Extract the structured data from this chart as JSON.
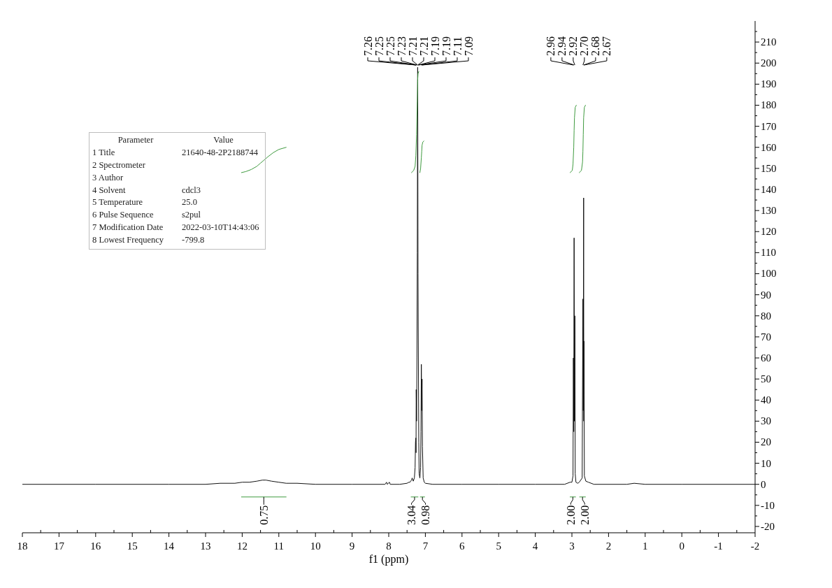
{
  "chart_data": {
    "type": "line",
    "xlabel": "f1 (ppm)",
    "xlim": [
      18,
      -2
    ],
    "xticks": [
      18,
      {
        "value": 17.5,
        "label": null
      },
      17,
      {
        "value": 16.5,
        "label": null
      },
      16,
      {
        "value": 15.5,
        "label": null
      },
      15,
      {
        "value": 14.5,
        "label": null
      },
      14,
      {
        "value": 13.5,
        "label": null
      },
      13,
      {
        "value": 12.5,
        "label": null
      },
      12,
      {
        "value": 11.5,
        "label": null
      },
      11,
      {
        "value": 10.5,
        "label": null
      },
      10,
      {
        "value": 9.5,
        "label": null
      },
      9,
      {
        "value": 8.5,
        "label": null
      },
      8,
      {
        "value": 7.5,
        "label": null
      },
      7,
      {
        "value": 6.5,
        "label": null
      },
      6,
      {
        "value": 5.5,
        "label": null
      },
      5,
      {
        "value": 4.5,
        "label": null
      },
      4,
      {
        "value": 3.5,
        "label": null
      },
      3,
      {
        "value": 2.5,
        "label": null
      },
      2,
      {
        "value": 1.5,
        "label": null
      },
      1,
      {
        "value": 0.5,
        "label": null
      },
      0,
      {
        "value": -0.5,
        "label": null
      },
      -1,
      {
        "value": -1.5,
        "label": null
      },
      -2
    ],
    "ylim": [
      -23,
      220
    ],
    "yticks": [
      -20,
      {
        "value": -15,
        "label": null
      },
      -10,
      {
        "value": -5,
        "label": null
      },
      0,
      {
        "value": 5,
        "label": null
      },
      10,
      {
        "value": 15,
        "label": null
      },
      20,
      {
        "value": 25,
        "label": null
      },
      30,
      {
        "value": 35,
        "label": null
      },
      40,
      {
        "value": 45,
        "label": null
      },
      50,
      {
        "value": 55,
        "label": null
      },
      60,
      {
        "value": 65,
        "label": null
      },
      70,
      {
        "value": 75,
        "label": null
      },
      80,
      {
        "value": 85,
        "label": null
      },
      90,
      {
        "value": 95,
        "label": null
      },
      100,
      {
        "value": 105,
        "label": null
      },
      110,
      {
        "value": 115,
        "label": null
      },
      120,
      {
        "value": 125,
        "label": null
      },
      130,
      {
        "value": 135,
        "label": null
      },
      140,
      {
        "value": 145,
        "label": null
      },
      150,
      {
        "value": 155,
        "label": null
      },
      160,
      {
        "value": 165,
        "label": null
      },
      170,
      {
        "value": 175,
        "label": null
      },
      180,
      {
        "value": 185,
        "label": null
      },
      190,
      {
        "value": 195,
        "label": null
      },
      200,
      {
        "value": 205,
        "label": null
      },
      210,
      {
        "value": 215,
        "label": null
      }
    ],
    "series": [
      {
        "color": "#111111",
        "x": [
          18,
          16,
          14,
          13,
          12.6,
          12.2,
          12.0,
          11.8,
          11.6,
          11.45,
          11.35,
          11.2,
          11.0,
          10.8,
          10.5,
          10.0,
          9.0,
          8.1,
          8.06,
          8.04,
          7.98,
          7.96,
          7.7,
          7.5,
          7.45,
          7.42,
          7.38,
          7.36,
          7.33,
          7.3,
          7.28,
          7.27,
          7.26,
          7.255,
          7.25,
          7.24,
          7.23,
          7.22,
          7.21,
          7.2,
          7.19,
          7.18,
          7.17,
          7.15,
          7.13,
          7.12,
          7.11,
          7.1,
          7.09,
          7.08,
          7.06,
          7.03,
          7.0,
          6.8,
          6.0,
          5.0,
          4.0,
          3.2,
          3.05,
          3.0,
          2.97,
          2.96,
          2.95,
          2.94,
          2.93,
          2.92,
          2.91,
          2.89,
          2.84,
          2.8,
          2.72,
          2.7,
          2.69,
          2.68,
          2.675,
          2.67,
          2.66,
          2.62,
          2.55,
          2.4,
          1.5,
          1.3,
          1.0,
          0,
          -2
        ],
        "values": [
          0,
          0,
          0,
          0,
          0.5,
          0.5,
          1,
          1,
          1.5,
          2,
          2,
          1.5,
          1,
          0.5,
          0.5,
          0,
          0,
          0,
          1,
          0,
          1,
          0,
          0,
          0.5,
          1,
          1,
          2,
          3,
          1.5,
          3,
          8,
          20,
          22,
          15,
          45,
          30,
          60,
          110,
          198,
          100,
          58,
          20,
          5,
          3,
          8,
          25,
          57,
          35,
          50,
          18,
          3,
          1,
          0.5,
          0,
          0,
          0,
          0,
          0,
          1,
          1,
          4,
          60,
          25,
          117,
          30,
          80,
          5,
          1,
          0.5,
          1,
          3,
          88,
          35,
          136,
          30,
          68,
          4,
          1.5,
          1,
          0,
          0,
          0.5,
          0,
          0,
          0
        ]
      },
      {
        "color": "#3f9b3f",
        "x": [
          12.02,
          11.9,
          11.75,
          11.6,
          11.5,
          11.4,
          11.3,
          11.15,
          11.0,
          10.8
        ],
        "values": [
          148,
          148.5,
          149.5,
          151,
          152.5,
          154,
          155.5,
          157.5,
          159,
          160
        ]
      },
      {
        "color": "#3f9b3f",
        "x": [
          7.38,
          7.32,
          7.28,
          7.26,
          7.24,
          7.22,
          7.21,
          7.2,
          7.18
        ],
        "values": [
          148,
          149,
          151,
          156,
          166,
          182,
          192,
          195,
          196
        ]
      },
      {
        "color": "#3f9b3f",
        "x": [
          7.15,
          7.13,
          7.11,
          7.1,
          7.09,
          7.07,
          7.04
        ],
        "values": [
          148,
          150,
          155,
          158,
          161,
          162.5,
          163
        ]
      },
      {
        "color": "#3f9b3f",
        "x": [
          3.05,
          2.99,
          2.97,
          2.95,
          2.94,
          2.93,
          2.91,
          2.88
        ],
        "values": [
          148,
          149,
          152,
          160,
          168,
          174,
          179,
          180
        ]
      },
      {
        "color": "#3f9b3f",
        "x": [
          2.8,
          2.74,
          2.71,
          2.7,
          2.69,
          2.68,
          2.66,
          2.63
        ],
        "values": [
          148,
          149,
          153,
          158,
          166,
          174,
          179,
          180
        ]
      },
      {
        "color": "#3f9b3f",
        "x": [
          12.02,
          10.8
        ],
        "values": [
          -6,
          -6
        ]
      },
      {
        "color": "#3f9b3f",
        "x": [
          7.39,
          7.2
        ],
        "values": [
          -6,
          -6
        ]
      },
      {
        "color": "#3f9b3f",
        "x": [
          7.14,
          7.02
        ],
        "values": [
          -6,
          -6
        ]
      },
      {
        "color": "#3f9b3f",
        "x": [
          3.05,
          2.9
        ],
        "values": [
          -6,
          -6
        ]
      },
      {
        "color": "#3f9b3f",
        "x": [
          2.79,
          2.63
        ],
        "values": [
          -6,
          -6
        ]
      }
    ],
    "annotations": [
      {
        "text": "7.26",
        "x": 7.26
      },
      {
        "text": "7.25",
        "x": 7.25
      },
      {
        "text": "7.25",
        "x": 7.25
      },
      {
        "text": "7.23",
        "x": 7.23
      },
      {
        "text": "7.21",
        "x": 7.21
      },
      {
        "text": "7.21",
        "x": 7.21
      },
      {
        "text": "7.19",
        "x": 7.19
      },
      {
        "text": "7.19",
        "x": 7.19
      },
      {
        "text": "7.11",
        "x": 7.11
      },
      {
        "text": "7.09",
        "x": 7.09
      },
      {
        "text": "2.96",
        "x": 2.96
      },
      {
        "text": "2.94",
        "x": 2.94
      },
      {
        "text": "2.92",
        "x": 2.92
      },
      {
        "text": "2.70",
        "x": 2.7
      },
      {
        "text": "2.68",
        "x": 2.68
      },
      {
        "text": "2.67",
        "x": 2.67
      },
      {
        "text": "0.75",
        "x": 11.41,
        "y": -6
      },
      {
        "text": "3.04",
        "x": 7.295,
        "y": -6
      },
      {
        "text": "0.98",
        "x": 7.08,
        "y": -6
      },
      {
        "text": "2.00",
        "x": 2.975,
        "y": -6
      },
      {
        "text": "2.00",
        "x": 2.71,
        "y": -6
      },
      "Parameter\tValue",
      "1 Title\t21640-48-2P2188744",
      "2 Spectrometer",
      "3 Author",
      "4 Solvent\tcdcl3",
      "5 Temperature\t25.0",
      "6 Pulse Sequence\ts2pul",
      "7 Modification Date\t2022-03-10T14:43:06",
      "8 Lowest Frequency\t-799.8"
    ]
  }
}
